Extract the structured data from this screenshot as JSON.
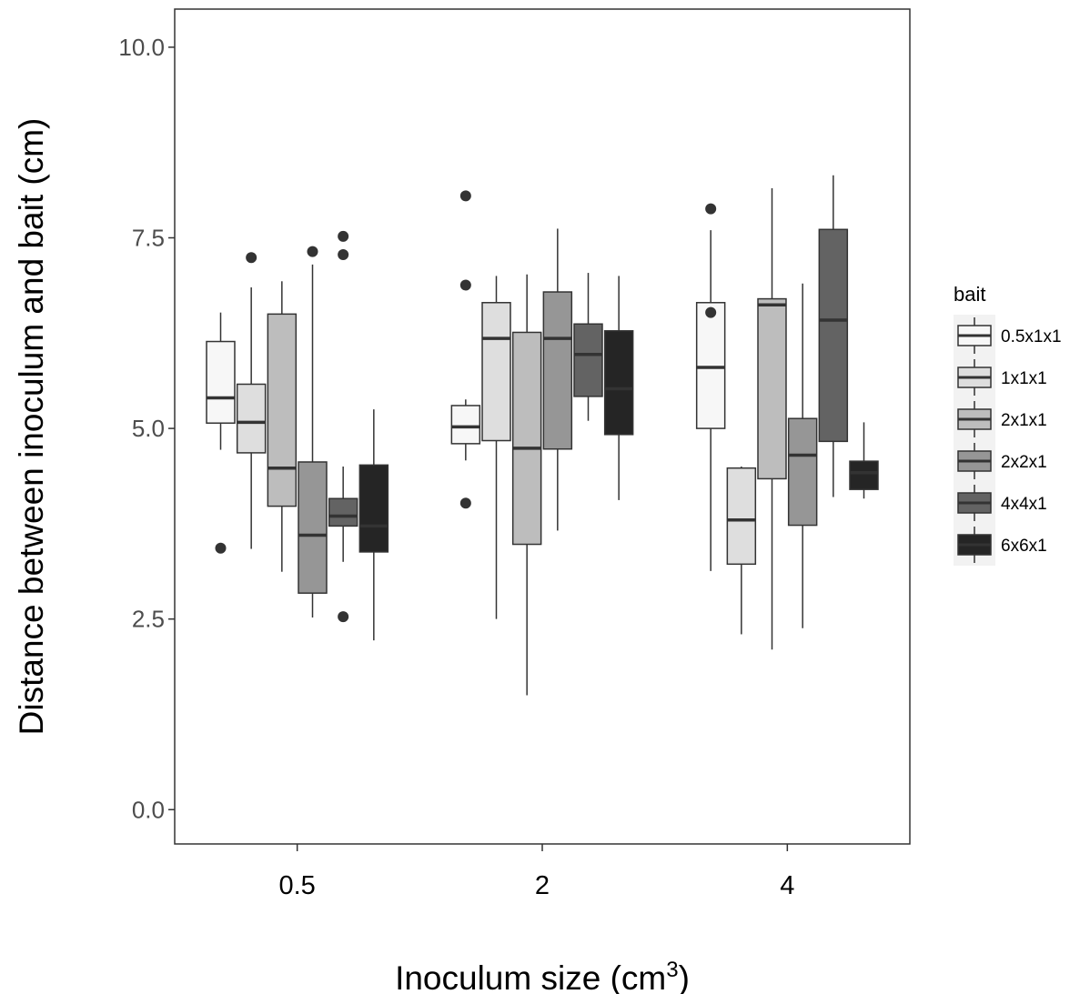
{
  "chart_data": {
    "type": "boxplot",
    "xlabel": "Inoculum size (cm",
    "xlabel_superscript": "3",
    "xlabel_suffix": ")",
    "ylabel": "Distance between inoculum and bait (cm)",
    "ylim": [
      -0.45,
      10.5
    ],
    "yticks": [
      0.0,
      2.5,
      5.0,
      7.5,
      10.0
    ],
    "ytick_labels": [
      "0.0",
      "2.5",
      "5.0",
      "7.5",
      "10.0"
    ],
    "categories": [
      "0.5",
      "2",
      "4"
    ],
    "grid": false,
    "legend": {
      "title": "bait",
      "placement": "right"
    },
    "series": [
      {
        "name": "0.5x1x1",
        "color": "#f7f7f7",
        "boxes": [
          {
            "category": "0.5",
            "q1": 5.07,
            "median": 5.4,
            "q3": 6.14,
            "whisker_low": 4.72,
            "whisker_high": 6.52,
            "outliers": [
              3.43
            ]
          },
          {
            "category": "2",
            "q1": 4.8,
            "median": 5.02,
            "q3": 5.3,
            "whisker_low": 4.58,
            "whisker_high": 5.38,
            "outliers": [
              8.05,
              6.88,
              4.02
            ]
          },
          {
            "category": "4",
            "q1": 5.0,
            "median": 5.8,
            "q3": 6.65,
            "whisker_low": 3.13,
            "whisker_high": 7.6,
            "outliers": [
              7.88,
              6.52
            ]
          }
        ]
      },
      {
        "name": "1x1x1",
        "color": "#dedede",
        "boxes": [
          {
            "category": "0.5",
            "q1": 4.68,
            "median": 5.08,
            "q3": 5.58,
            "whisker_low": 3.42,
            "whisker_high": 6.85,
            "outliers": [
              7.24
            ]
          },
          {
            "category": "2",
            "q1": 4.84,
            "median": 6.18,
            "q3": 6.65,
            "whisker_low": 2.5,
            "whisker_high": 7.0,
            "outliers": []
          },
          {
            "category": "4",
            "q1": 3.22,
            "median": 3.8,
            "q3": 4.48,
            "whisker_low": 2.3,
            "whisker_high": 4.5,
            "outliers": []
          }
        ]
      },
      {
        "name": "2x1x1",
        "color": "#bdbdbd",
        "boxes": [
          {
            "category": "0.5",
            "q1": 3.98,
            "median": 4.48,
            "q3": 6.5,
            "whisker_low": 3.12,
            "whisker_high": 6.93,
            "outliers": []
          },
          {
            "category": "2",
            "q1": 3.48,
            "median": 4.74,
            "q3": 6.26,
            "whisker_low": 1.5,
            "whisker_high": 7.02,
            "outliers": []
          },
          {
            "category": "4",
            "q1": 4.34,
            "median": 6.62,
            "q3": 6.7,
            "whisker_low": 2.1,
            "whisker_high": 8.15,
            "outliers": []
          }
        ]
      },
      {
        "name": "2x2x1",
        "color": "#969696",
        "boxes": [
          {
            "category": "0.5",
            "q1": 2.84,
            "median": 3.6,
            "q3": 4.56,
            "whisker_low": 2.52,
            "whisker_high": 7.15,
            "outliers": [
              7.32
            ]
          },
          {
            "category": "2",
            "q1": 4.73,
            "median": 6.18,
            "q3": 6.79,
            "whisker_low": 3.66,
            "whisker_high": 7.62,
            "outliers": []
          },
          {
            "category": "4",
            "q1": 3.73,
            "median": 4.65,
            "q3": 5.13,
            "whisker_low": 2.38,
            "whisker_high": 6.9,
            "outliers": []
          }
        ]
      },
      {
        "name": "4x4x1",
        "color": "#636363",
        "boxes": [
          {
            "category": "0.5",
            "q1": 3.72,
            "median": 3.85,
            "q3": 4.08,
            "whisker_low": 3.25,
            "whisker_high": 4.5,
            "outliers": [
              7.52,
              7.28,
              2.53
            ]
          },
          {
            "category": "2",
            "q1": 5.42,
            "median": 5.97,
            "q3": 6.37,
            "whisker_low": 5.1,
            "whisker_high": 7.04,
            "outliers": []
          },
          {
            "category": "4",
            "q1": 4.83,
            "median": 6.42,
            "q3": 7.61,
            "whisker_low": 4.1,
            "whisker_high": 8.32,
            "outliers": []
          }
        ]
      },
      {
        "name": "6x6x1",
        "color": "#252525",
        "boxes": [
          {
            "category": "0.5",
            "q1": 3.38,
            "median": 3.72,
            "q3": 4.52,
            "whisker_low": 2.22,
            "whisker_high": 5.25,
            "outliers": []
          },
          {
            "category": "2",
            "q1": 4.92,
            "median": 5.52,
            "q3": 6.28,
            "whisker_low": 4.06,
            "whisker_high": 7.0,
            "outliers": []
          },
          {
            "category": "4",
            "q1": 4.2,
            "median": 4.42,
            "q3": 4.57,
            "whisker_low": 4.08,
            "whisker_high": 5.08,
            "outliers": []
          }
        ]
      }
    ]
  }
}
